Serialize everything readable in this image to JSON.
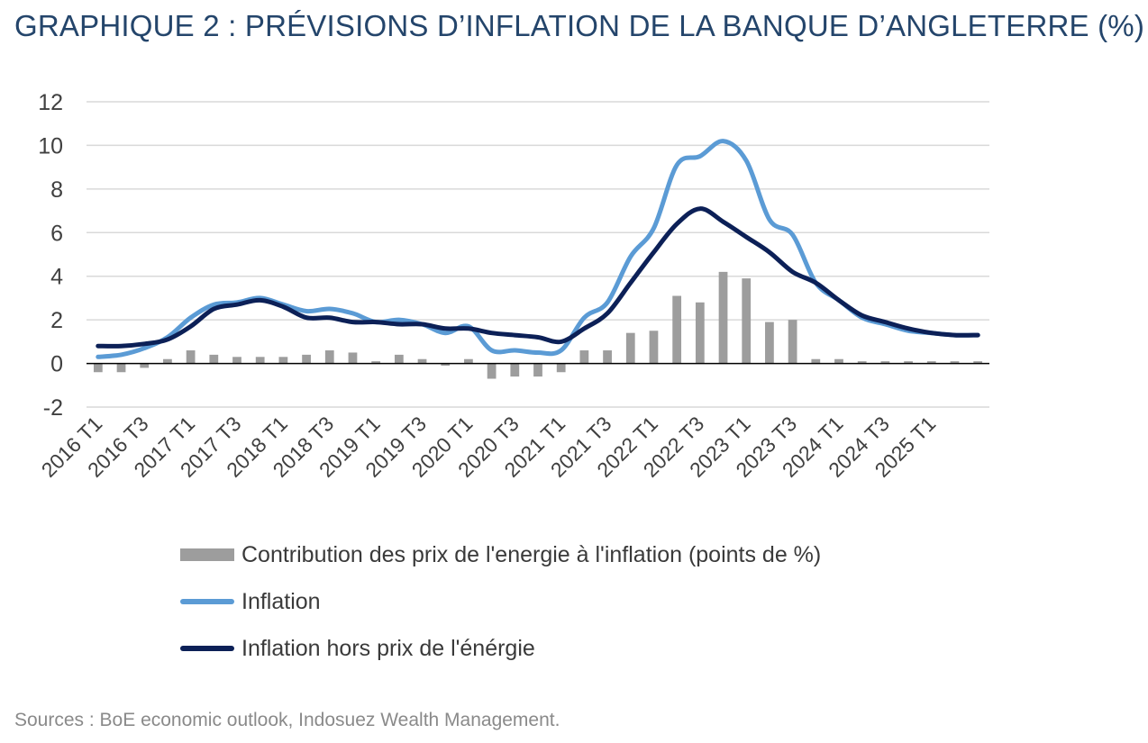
{
  "title": "GRAPHIQUE 2 : PRÉVISIONS D’INFLATION DE LA BANQUE D’ANGLETERRE (%)",
  "source": "Sources : BoE economic outlook, Indosuez Wealth Management.",
  "colors": {
    "bars": "#9d9d9d",
    "inflation": "#5b9bd5",
    "core": "#0c2057",
    "grid": "#d9d9d9",
    "title": "#24456b"
  },
  "chart_data": {
    "type": "bar",
    "title": "GRAPHIQUE 2 : PRÉVISIONS D’INFLATION DE LA BANQUE D’ANGLETERRE (%)",
    "categories": [
      "2016 T1",
      "2016 T2",
      "2016 T3",
      "2016 T4",
      "2017 T1",
      "2017 T2",
      "2017 T3",
      "2017 T4",
      "2018 T1",
      "2018 T2",
      "2018 T3",
      "2018 T4",
      "2019 T1",
      "2019 T2",
      "2019 T3",
      "2019 T4",
      "2020 T1",
      "2020 T2",
      "2020 T3",
      "2020 T4",
      "2021 T1",
      "2021 T2",
      "2021 T3",
      "2021 T4",
      "2022 T1",
      "2022 T2",
      "2022 T3",
      "2022 T4",
      "2023 T1",
      "2023 T2",
      "2023 T3",
      "2023 T4",
      "2024 T1",
      "2024 T2",
      "2024 T3",
      "2024 T4",
      "2025 T1",
      "2025 T2",
      "2025 T3"
    ],
    "tick_labels": [
      "2016 T1",
      "2016 T3",
      "2017 T1",
      "2017 T3",
      "2018 T1",
      "2018 T3",
      "2019 T1",
      "2019 T3",
      "2020 T1",
      "2020 T3",
      "2021 T1",
      "2021 T3",
      "2022 T1",
      "2022 T3",
      "2023 T1",
      "2023 T3",
      "2024 T1",
      "2024 T3",
      "2025 T1"
    ],
    "ylim": [
      -2,
      12
    ],
    "yticks": [
      -2,
      0,
      2,
      4,
      6,
      8,
      10,
      12
    ],
    "grid": true,
    "legend_position": "bottom",
    "series": [
      {
        "name": "Contribution des prix de l'energie à l'inflation (points de %)",
        "type": "bar",
        "values": [
          -0.4,
          -0.4,
          -0.2,
          0.2,
          0.6,
          0.4,
          0.3,
          0.3,
          0.3,
          0.4,
          0.6,
          0.5,
          0.1,
          0.4,
          0.2,
          -0.1,
          0.2,
          -0.7,
          -0.6,
          -0.6,
          -0.4,
          0.6,
          0.6,
          1.4,
          1.5,
          3.1,
          2.8,
          4.2,
          3.9,
          1.9,
          2.0,
          0.2,
          0.2,
          0.1,
          0.1,
          0.1,
          0.1,
          0.1,
          0.1
        ]
      },
      {
        "name": "Inflation",
        "type": "line",
        "values": [
          0.3,
          0.4,
          0.7,
          1.2,
          2.1,
          2.7,
          2.8,
          3.0,
          2.7,
          2.4,
          2.5,
          2.3,
          1.9,
          2.0,
          1.8,
          1.4,
          1.7,
          0.6,
          0.6,
          0.5,
          0.6,
          2.1,
          2.8,
          4.9,
          6.2,
          9.1,
          9.5,
          10.2,
          9.3,
          6.6,
          5.9,
          3.7,
          2.9,
          2.1,
          1.8,
          1.5,
          1.4,
          1.3,
          1.3
        ]
      },
      {
        "name": "Inflation hors prix de l'énérgie",
        "type": "line",
        "values": [
          0.8,
          0.8,
          0.9,
          1.1,
          1.7,
          2.5,
          2.7,
          2.9,
          2.6,
          2.1,
          2.1,
          1.9,
          1.9,
          1.8,
          1.8,
          1.6,
          1.6,
          1.4,
          1.3,
          1.2,
          1.0,
          1.6,
          2.3,
          3.7,
          5.1,
          6.4,
          7.1,
          6.5,
          5.8,
          5.1,
          4.2,
          3.7,
          2.9,
          2.2,
          1.9,
          1.6,
          1.4,
          1.3,
          1.3
        ]
      }
    ]
  }
}
